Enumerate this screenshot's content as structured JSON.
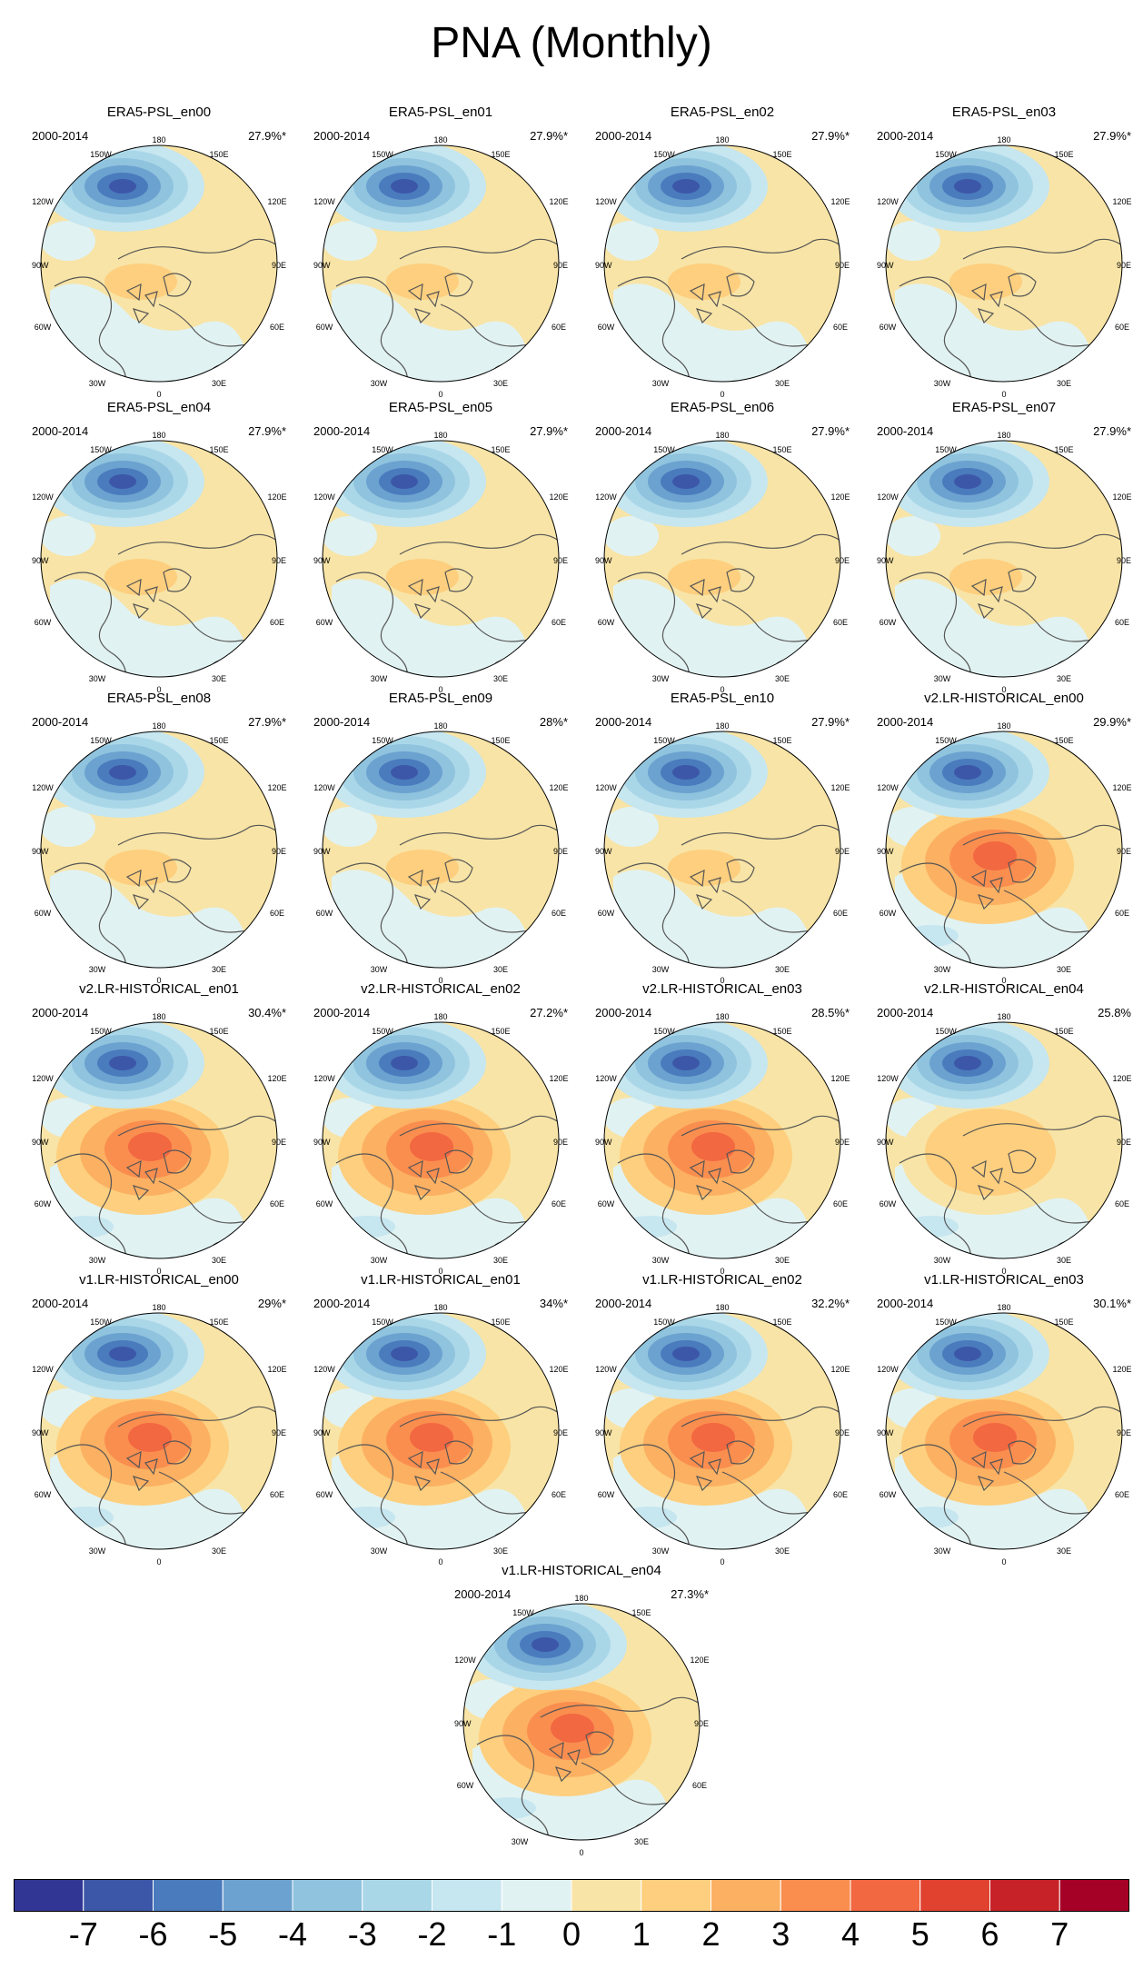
{
  "title": "PNA (Monthly)",
  "panels": [
    {
      "name": "ERA5-PSL_en00",
      "period": "2000-2014",
      "pct": "27.9%*",
      "style": "era5"
    },
    {
      "name": "ERA5-PSL_en01",
      "period": "2000-2014",
      "pct": "27.9%*",
      "style": "era5"
    },
    {
      "name": "ERA5-PSL_en02",
      "period": "2000-2014",
      "pct": "27.9%*",
      "style": "era5"
    },
    {
      "name": "ERA5-PSL_en03",
      "period": "2000-2014",
      "pct": "27.9%*",
      "style": "era5"
    },
    {
      "name": "ERA5-PSL_en04",
      "period": "2000-2014",
      "pct": "27.9%*",
      "style": "era5"
    },
    {
      "name": "ERA5-PSL_en05",
      "period": "2000-2014",
      "pct": "27.9%*",
      "style": "era5"
    },
    {
      "name": "ERA5-PSL_en06",
      "period": "2000-2014",
      "pct": "27.9%*",
      "style": "era5"
    },
    {
      "name": "ERA5-PSL_en07",
      "period": "2000-2014",
      "pct": "27.9%*",
      "style": "era5"
    },
    {
      "name": "ERA5-PSL_en08",
      "period": "2000-2014",
      "pct": "27.9%*",
      "style": "era5"
    },
    {
      "name": "ERA5-PSL_en09",
      "period": "2000-2014",
      "pct": "28%*",
      "style": "era5"
    },
    {
      "name": "ERA5-PSL_en10",
      "period": "2000-2014",
      "pct": "27.9%*",
      "style": "era5"
    },
    {
      "name": "v2.LR-HISTORICAL_en00",
      "period": "2000-2014",
      "pct": "29.9%*",
      "style": "model"
    },
    {
      "name": "v2.LR-HISTORICAL_en01",
      "period": "2000-2014",
      "pct": "30.4%*",
      "style": "model"
    },
    {
      "name": "v2.LR-HISTORICAL_en02",
      "period": "2000-2014",
      "pct": "27.2%*",
      "style": "model"
    },
    {
      "name": "v2.LR-HISTORICAL_en03",
      "period": "2000-2014",
      "pct": "28.5%*",
      "style": "model"
    },
    {
      "name": "v2.LR-HISTORICAL_en04",
      "period": "2000-2014",
      "pct": "25.8%",
      "style": "weak"
    },
    {
      "name": "v1.LR-HISTORICAL_en00",
      "period": "2000-2014",
      "pct": "29%*",
      "style": "model"
    },
    {
      "name": "v1.LR-HISTORICAL_en01",
      "period": "2000-2014",
      "pct": "34%*",
      "style": "model"
    },
    {
      "name": "v1.LR-HISTORICAL_en02",
      "period": "2000-2014",
      "pct": "32.2%*",
      "style": "model"
    },
    {
      "name": "v1.LR-HISTORICAL_en03",
      "period": "2000-2014",
      "pct": "30.1%*",
      "style": "model"
    },
    {
      "name": "v1.LR-HISTORICAL_en04",
      "period": "2000-2014",
      "pct": "27.3%*",
      "style": "model"
    }
  ],
  "map_labels": {
    "top": "180",
    "top_left": "150W",
    "top_right": "150E",
    "upper_left": "120W",
    "upper_right": "120E",
    "left": "90W",
    "right": "90E",
    "lower_left": "60W",
    "lower_right": "60E",
    "bottom_left": "30W",
    "bottom_right": "30E",
    "bottom": "0"
  },
  "colorbar": {
    "colors": [
      "#313695",
      "#3c57a8",
      "#4a7bbd",
      "#6ca2cf",
      "#8fc3de",
      "#aad7e8",
      "#c6e6f0",
      "#e1f2f2",
      "#f8e4a6",
      "#fdcf7e",
      "#fcb062",
      "#fa8e4f",
      "#f26841",
      "#e0422f",
      "#c62227",
      "#a50026"
    ],
    "labels": [
      "-7",
      "-6",
      "-5",
      "-4",
      "-3",
      "-2",
      "-1",
      "0",
      "1",
      "2",
      "3",
      "4",
      "5",
      "6",
      "7"
    ]
  }
}
